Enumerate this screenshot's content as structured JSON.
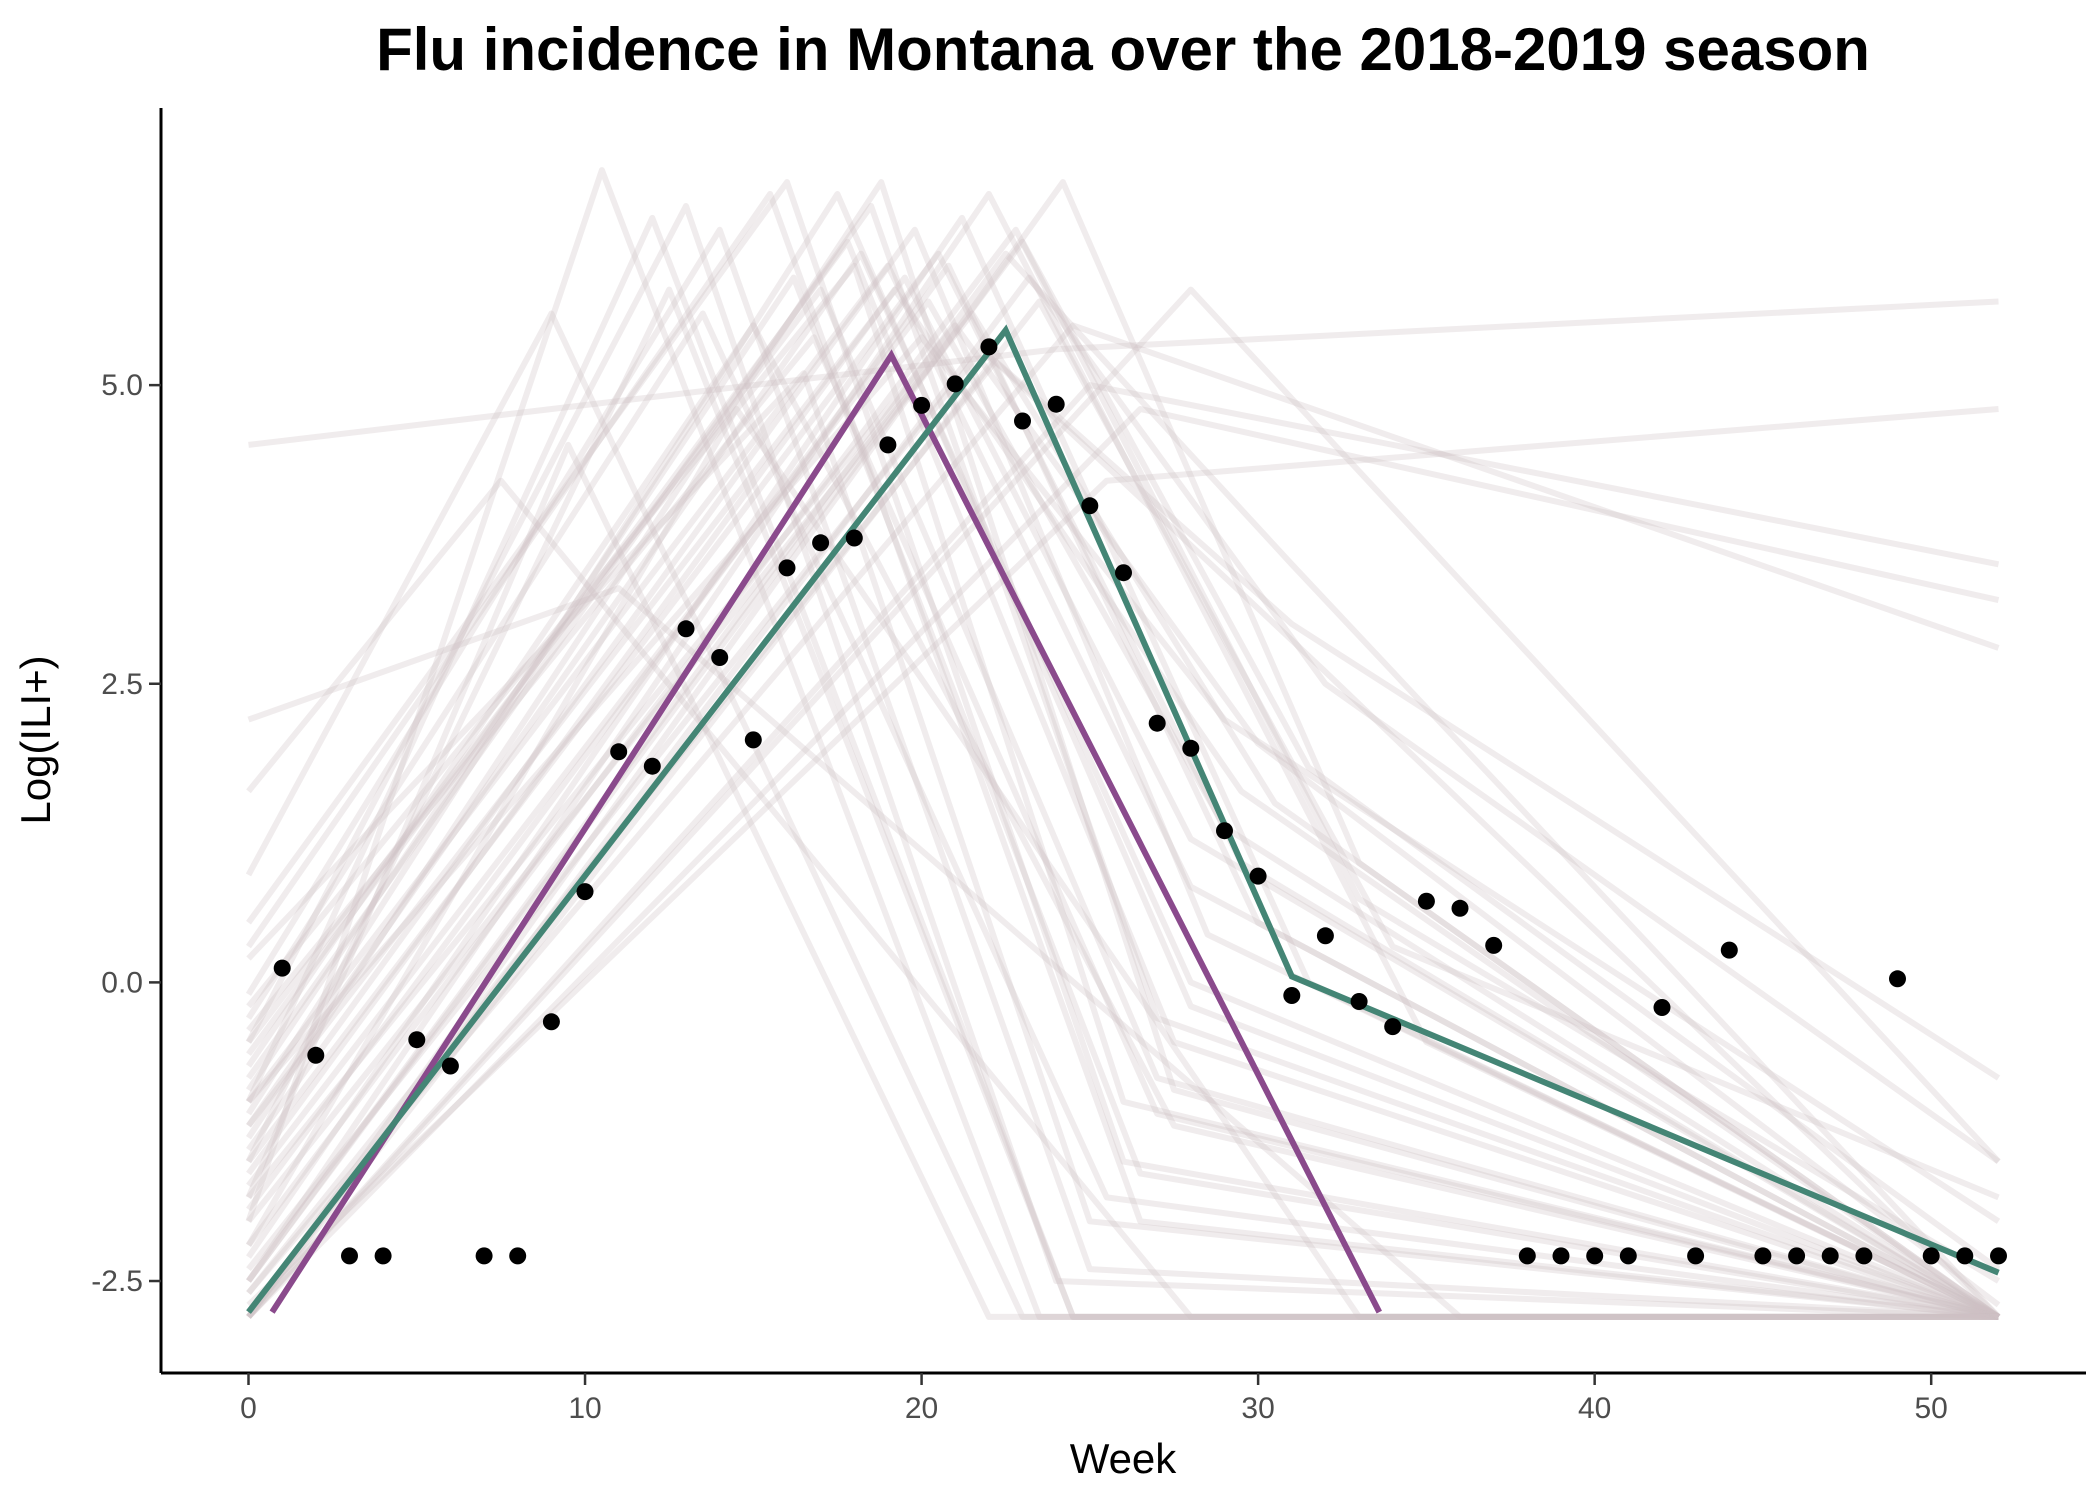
{
  "chart_data": {
    "type": "line",
    "title": "Flu incidence in Montana over the 2018-2019 season",
    "xlabel": "Week",
    "ylabel": "Log(ILI+)",
    "xlim": [
      -2.6,
      54.6
    ],
    "ylim": [
      -3.27,
      7.32
    ],
    "x_ticks": [
      0,
      10,
      20,
      30,
      40,
      50
    ],
    "x_tick_labels": [
      "0",
      "10",
      "20",
      "30",
      "40",
      "50"
    ],
    "y_ticks": [
      -2.5,
      0,
      2.5,
      5
    ],
    "y_tick_labels": [
      "-2.5",
      "0.0",
      "2.5",
      "5.0"
    ],
    "grid": false,
    "legend": "none",
    "colors": {
      "observed": "#000000",
      "purple_fit": "#8a4a8c",
      "green_fit": "#448575",
      "samples": "#cdbfc4"
    },
    "series": [
      {
        "kind": "points",
        "x": [
          1,
          2,
          3,
          4,
          5,
          6,
          7,
          8,
          9,
          10,
          11,
          12,
          13,
          14,
          15,
          16,
          17,
          18,
          19,
          20,
          21,
          22,
          23,
          24,
          25,
          26,
          27,
          28,
          29,
          30,
          31,
          32,
          33,
          34,
          35,
          36,
          37,
          38,
          39,
          40,
          41,
          42,
          43,
          44,
          45,
          46,
          47,
          48,
          49,
          50,
          51,
          52
        ],
        "y": [
          0.12,
          -0.61,
          -2.29,
          -2.29,
          -0.48,
          -0.7,
          -2.29,
          -2.29,
          -0.33,
          0.76,
          1.93,
          1.81,
          2.96,
          2.72,
          2.03,
          3.47,
          3.68,
          3.72,
          4.5,
          4.83,
          5.01,
          5.32,
          4.7,
          4.84,
          3.99,
          3.43,
          2.17,
          1.96,
          1.27,
          0.89,
          -0.11,
          0.39,
          -0.16,
          -0.37,
          0.68,
          0.62,
          0.31,
          -2.29,
          -2.29,
          -2.29,
          -2.29,
          -0.21,
          -2.29,
          0.27,
          -2.29,
          -2.29,
          -2.29,
          -2.29,
          0.03,
          -2.29,
          -2.29,
          -2.29
        ]
      },
      {
        "kind": "line",
        "x": [
          0.7,
          19.1,
          33.6
        ],
        "y": [
          -2.76,
          5.25,
          -2.76
        ]
      },
      {
        "kind": "line",
        "x": [
          0,
          22.5,
          31,
          52
        ],
        "y": [
          -2.76,
          5.46,
          0.05,
          -2.43
        ]
      },
      {
        "kind": "samples",
        "lines": [
          {
            "x": [
              0,
              22.5,
              31,
              52
            ],
            "y": [
              -2.5,
              6.1,
              3.5,
              -2.8
            ]
          },
          {
            "x": [
              0,
              21.0,
              30,
              52
            ],
            "y": [
              -1.8,
              5.5,
              2.0,
              -2.7
            ]
          },
          {
            "x": [
              0,
              19.5,
              28,
              52
            ],
            "y": [
              -1.2,
              5.9,
              1.2,
              -2.8
            ]
          },
          {
            "x": [
              0,
              17.8,
              27.5,
              52
            ],
            "y": [
              -0.6,
              6.2,
              -0.5,
              -2.8
            ]
          },
          {
            "x": [
              0,
              16.0,
              26,
              52
            ],
            "y": [
              0.5,
              6.7,
              -1.5,
              -2.8
            ]
          },
          {
            "x": [
              0,
              13.5,
              25.5,
              52
            ],
            "y": [
              -0.3,
              5.6,
              -1.8,
              -2.8
            ]
          },
          {
            "x": [
              0,
              12.0,
              24.5,
              52
            ],
            "y": [
              -1.0,
              6.4,
              -2.8,
              -2.8
            ]
          },
          {
            "x": [
              0,
              11.0,
              36,
              52
            ],
            "y": [
              2.2,
              3.3,
              -2.8,
              -2.8
            ]
          },
          {
            "x": [
              0,
              9.0,
              23.0,
              52
            ],
            "y": [
              0.9,
              5.6,
              -2.8,
              -2.8
            ]
          },
          {
            "x": [
              0,
              7.5,
              28.0,
              52
            ],
            "y": [
              1.6,
              4.2,
              -2.8,
              -2.8
            ]
          },
          {
            "x": [
              0,
              24.0,
              52
            ],
            "y": [
              4.5,
              5.3,
              5.7
            ]
          },
          {
            "x": [
              0,
              22.0,
              35,
              52
            ],
            "y": [
              -2.5,
              6.6,
              -0.5,
              -2.8
            ]
          },
          {
            "x": [
              0,
              20.5,
              29.5,
              52
            ],
            "y": [
              -1.5,
              6.1,
              1.0,
              -2.8
            ]
          },
          {
            "x": [
              0,
              18.5,
              27.0,
              52
            ],
            "y": [
              -0.8,
              6.5,
              -0.3,
              -2.8
            ]
          },
          {
            "x": [
              0,
              14.5,
              33,
              52
            ],
            "y": [
              -2.2,
              4.8,
              -2.8,
              -2.8
            ]
          },
          {
            "x": [
              0,
              23.2,
              32,
              52
            ],
            "y": [
              -2.8,
              5.9,
              2.5,
              -1.5
            ]
          },
          {
            "x": [
              0,
              21.5,
              30.5,
              52
            ],
            "y": [
              -2.0,
              5.6,
              1.5,
              -2.8
            ]
          },
          {
            "x": [
              0,
              19.8,
              28.5,
              52
            ],
            "y": [
              -1.4,
              6.3,
              0.4,
              -2.8
            ]
          },
          {
            "x": [
              0,
              17.0,
              27.0,
              52
            ],
            "y": [
              -0.5,
              5.8,
              -0.8,
              -2.8
            ]
          },
          {
            "x": [
              0,
              15.5,
              26.5,
              52
            ],
            "y": [
              0.3,
              6.6,
              -2.0,
              -2.8
            ]
          },
          {
            "x": [
              0,
              25.0,
              52
            ],
            "y": [
              -2.8,
              5.0,
              3.5
            ]
          },
          {
            "x": [
              0,
              26.5,
              52
            ],
            "y": [
              -2.8,
              4.8,
              3.2
            ]
          },
          {
            "x": [
              0,
              24.5,
              52
            ],
            "y": [
              -2.6,
              5.5,
              2.8
            ]
          },
          {
            "x": [
              0,
              25.5,
              52
            ],
            "y": [
              -2.7,
              4.2,
              4.8
            ]
          },
          {
            "x": [
              0,
              22.8,
              33,
              52
            ],
            "y": [
              -2.2,
              6.3,
              0.7,
              -2.5
            ]
          },
          {
            "x": [
              0,
              20.0,
              29.0,
              52
            ],
            "y": [
              -1.0,
              5.4,
              2.2,
              -2.0
            ]
          },
          {
            "x": [
              0,
              18.0,
              26.0,
              52
            ],
            "y": [
              -0.2,
              6.0,
              -1.0,
              -2.8
            ]
          },
          {
            "x": [
              0,
              16.5,
              25.0,
              52
            ],
            "y": [
              0.2,
              5.1,
              -2.0,
              -2.8
            ]
          },
          {
            "x": [
              0,
              13.0,
              24.0,
              52
            ],
            "y": [
              -0.5,
              6.5,
              -2.5,
              -2.8
            ]
          },
          {
            "x": [
              0,
              10.5,
              23.5,
              52
            ],
            "y": [
              -2.0,
              6.8,
              -2.8,
              -2.8
            ]
          },
          {
            "x": [
              0,
              23.5,
              34,
              52
            ],
            "y": [
              -2.8,
              5.7,
              0.3,
              -1.8
            ]
          },
          {
            "x": [
              0,
              21.2,
              31.5,
              52
            ],
            "y": [
              -2.3,
              6.4,
              0.0,
              -2.8
            ]
          },
          {
            "x": [
              0,
              19.2,
              29.5,
              52
            ],
            "y": [
              -1.6,
              5.8,
              1.6,
              -2.8
            ]
          },
          {
            "x": [
              0,
              17.5,
              28.0,
              52
            ],
            "y": [
              -1.1,
              6.6,
              -0.2,
              -2.8
            ]
          },
          {
            "x": [
              0,
              15.0,
              27.5,
              52
            ],
            "y": [
              -0.7,
              5.5,
              -1.2,
              -2.8
            ]
          },
          {
            "x": [
              0,
              22.2,
              31,
              52
            ],
            "y": [
              -2.6,
              5.2,
              3.0,
              -0.8
            ]
          },
          {
            "x": [
              0,
              20.8,
              30,
              52
            ],
            "y": [
              -1.9,
              6.0,
              0.5,
              -2.8
            ]
          },
          {
            "x": [
              0,
              18.8,
              27.5,
              52
            ],
            "y": [
              -1.3,
              6.7,
              -0.9,
              -2.8
            ]
          },
          {
            "x": [
              0,
              16.2,
              26.5,
              52
            ],
            "y": [
              -0.9,
              5.9,
              -1.6,
              -2.8
            ]
          },
          {
            "x": [
              0,
              14.0,
              25.0,
              52
            ],
            "y": [
              -0.1,
              6.3,
              -2.4,
              -2.8
            ]
          },
          {
            "x": [
              0,
              28.0,
              52
            ],
            "y": [
              -2.8,
              5.8,
              -1.5
            ]
          },
          {
            "x": [
              0,
              24.2,
              33,
              52
            ],
            "y": [
              -2.8,
              6.7,
              1.0,
              -2.8
            ]
          },
          {
            "x": [
              0,
              21.8,
              32,
              52
            ],
            "y": [
              -2.4,
              5.3,
              2.6,
              -2.8
            ]
          },
          {
            "x": [
              0,
              20.2,
              29.0,
              52
            ],
            "y": [
              -1.7,
              5.7,
              1.3,
              -2.8
            ]
          },
          {
            "x": [
              0,
              18.2,
              28.0,
              52
            ],
            "y": [
              -1.2,
              6.1,
              0.0,
              -2.8
            ]
          },
          {
            "x": [
              0,
              16.8,
              27.0,
              52
            ],
            "y": [
              -0.4,
              5.4,
              -1.1,
              -2.8
            ]
          },
          {
            "x": [
              0,
              12.5,
              24.5,
              52
            ],
            "y": [
              -1.5,
              5.8,
              -2.8,
              -2.8
            ]
          },
          {
            "x": [
              0,
              9.5,
              22.0,
              52
            ],
            "y": [
              -1.8,
              4.5,
              -2.8,
              -2.8
            ]
          },
          {
            "x": [
              0,
              23.0,
              31.5,
              52
            ],
            "y": [
              -2.5,
              6.2,
              1.8,
              -2.4
            ]
          },
          {
            "x": [
              0,
              19.0,
              28.0,
              52
            ],
            "y": [
              -1.0,
              6.0,
              0.8,
              -2.8
            ]
          }
        ]
      }
    ]
  }
}
